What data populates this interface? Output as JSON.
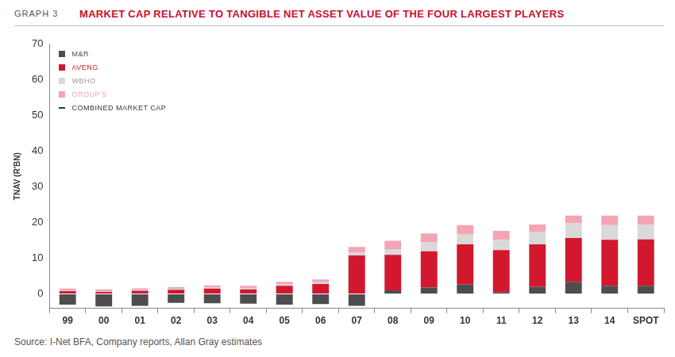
{
  "chart_data": {
    "type": "bar",
    "title": "MARKET CAP RELATIVE TO TANGIBLE NET ASSET VALUE OF THE FOUR LARGEST PLAYERS",
    "annotations": [
      "GRAPH 3",
      "Source: I-Net BFA, Company reports, Allan Gray estimates"
    ],
    "y_label": "TNAV (R'BN)",
    "categories": [
      "99",
      "00",
      "01",
      "02",
      "03",
      "04",
      "05",
      "06",
      "07",
      "08",
      "09",
      "10",
      "11",
      "12",
      "13",
      "14",
      "SPOT"
    ],
    "series": [
      {
        "name": "M&R",
        "color": "#4d4d4f",
        "values": [
          -3,
          -3.5,
          -3.3,
          -2.5,
          -2.6,
          -2.7,
          -3,
          -2.8,
          -3.3,
          1,
          1.8,
          2.7,
          0.5,
          2,
          3.4,
          2.3,
          2.3
        ]
      },
      {
        "name": "AVENG",
        "color": "#d2182f",
        "values": [
          0.8,
          0.6,
          0.9,
          1.2,
          1.5,
          1.3,
          2.3,
          2.8,
          10.8,
          10,
          10.2,
          11.2,
          11.8,
          11.9,
          12.3,
          12.9,
          13
        ]
      },
      {
        "name": "WBHO",
        "color": "#d9d9d9",
        "values": [
          0.2,
          0.2,
          0.2,
          0.2,
          0.3,
          0.4,
          0.4,
          0.5,
          0.8,
          1.6,
          2.5,
          2.9,
          2.9,
          3.6,
          4.1,
          4.1,
          4.1
        ]
      },
      {
        "name": "GROUP 5",
        "color": "#f2a5b5",
        "values": [
          0.5,
          0.5,
          0.5,
          0.5,
          0.6,
          0.6,
          0.7,
          0.8,
          1.6,
          2.3,
          2.5,
          2.5,
          2.5,
          2,
          2.2,
          2.7,
          2.6
        ]
      },
      {
        "name": "COMBINED MARKET CAP",
        "color": "#333333",
        "type": "line",
        "values": [
          null,
          null,
          null,
          null,
          null,
          null,
          null,
          null,
          null,
          null,
          null,
          null,
          null,
          null,
          null,
          null,
          null
        ]
      }
    ],
    "stacked": true,
    "ylim": [
      -4,
      70
    ],
    "yticks": [
      0,
      10,
      20,
      30,
      40,
      50,
      60,
      70
    ],
    "grid": false,
    "legend": "top-left"
  }
}
